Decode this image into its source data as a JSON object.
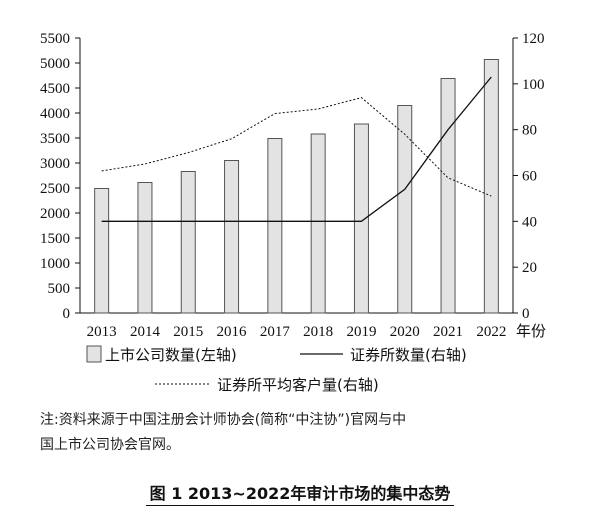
{
  "chart_data": {
    "type": "bar",
    "categories": [
      "2013",
      "2014",
      "2015",
      "2016",
      "2017",
      "2018",
      "2019",
      "2020",
      "2021",
      "2022"
    ],
    "x_unit": "年份",
    "y_left": {
      "ticks": [
        "0",
        "500",
        "1000",
        "1500",
        "2000",
        "2500",
        "3000",
        "3500",
        "4000",
        "4500",
        "5000",
        "5500"
      ],
      "ylim": [
        0,
        5500
      ]
    },
    "y_right": {
      "ticks": [
        "0",
        "20",
        "40",
        "60",
        "80",
        "100",
        "120"
      ],
      "ylim": [
        0,
        120
      ]
    },
    "series": [
      {
        "name": "上市公司数量(左轴)",
        "type": "bar",
        "axis": "left",
        "values": [
          2490,
          2610,
          2830,
          3050,
          3490,
          3580,
          3780,
          4150,
          4690,
          5070
        ]
      },
      {
        "name": "证券所数量(右轴)",
        "type": "line",
        "style": "solid",
        "axis": "right",
        "values": [
          40,
          40,
          40,
          40,
          40,
          40,
          40,
          54,
          80,
          103
        ]
      },
      {
        "name": "证券所平均客户量(右轴)",
        "type": "line",
        "style": "dotted",
        "axis": "right",
        "values": [
          62,
          65,
          70,
          76,
          87,
          89,
          94,
          78,
          59,
          51
        ]
      }
    ],
    "grid": false,
    "legend_position": "bottom"
  },
  "note": {
    "line1": "注:资料来源于中国注册会计师协会(简称“中注协”)官网与中",
    "line2": "国上市公司协会官网。"
  },
  "caption": "图 1  2013~2022年审计市场的集中态势",
  "colors": {
    "bar_fill": "#e3e3e3",
    "bar_stroke": "#555555",
    "line": "#111111"
  }
}
